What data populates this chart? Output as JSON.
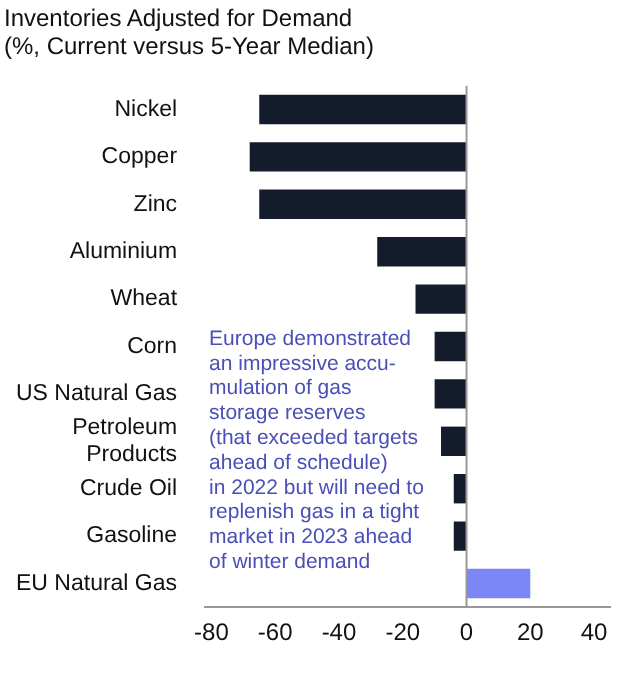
{
  "chart_data": {
    "type": "bar",
    "orientation": "horizontal",
    "title": "Inventories Adjusted for Demand",
    "subtitle": "(%, Current versus 5-Year Median)",
    "categories": [
      "Nickel",
      "Copper",
      "Zinc",
      "Aluminium",
      "Wheat",
      "Corn",
      "US Natural Gas",
      "Petroleum Products",
      "Crude Oil",
      "Gasoline",
      "EU Natural Gas"
    ],
    "values": [
      -65,
      -68,
      -65,
      -28,
      -16,
      -10,
      -10,
      -8,
      -4,
      -4,
      20
    ],
    "colors": [
      "#141c2b",
      "#141c2b",
      "#141c2b",
      "#141c2b",
      "#141c2b",
      "#141c2b",
      "#141c2b",
      "#141c2b",
      "#141c2b",
      "#141c2b",
      "#7b86f7"
    ],
    "xlim": [
      -82,
      45
    ],
    "xticks": [
      -80,
      -60,
      -40,
      -20,
      0,
      20,
      40
    ],
    "grid": false,
    "ref_lines": [
      {
        "axis": "x",
        "value": 0,
        "color": "#999999"
      }
    ],
    "annotations": [
      "Europe demonstrated\nan impressive accu-\nmulation of gas\nstorage reserves\n(that exceeded targets\nahead of schedule)\nin 2022 but will need to\nreplenish gas in a tight\nmarket in 2023 ahead\nof winter demand"
    ]
  }
}
